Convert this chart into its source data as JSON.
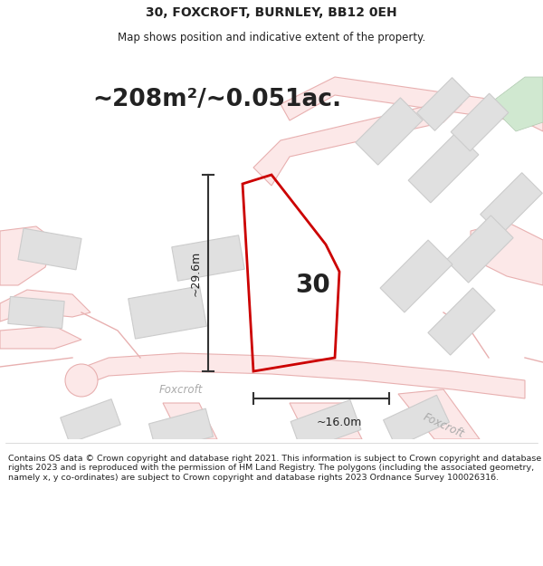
{
  "title_line1": "30, FOXCROFT, BURNLEY, BB12 0EH",
  "title_line2": "Map shows position and indicative extent of the property.",
  "area_text": "~208m²/~0.051ac.",
  "plot_number": "30",
  "dim_height": "~29.6m",
  "dim_width": "~16.0m",
  "street_label_1": "Foxcroft",
  "street_label_2": "Foxcroft",
  "footer_text": "Contains OS data © Crown copyright and database right 2021. This information is subject to Crown copyright and database rights 2023 and is reproduced with the permission of HM Land Registry. The polygons (including the associated geometry, namely x, y co-ordinates) are subject to Crown copyright and database rights 2023 Ordnance Survey 100026316.",
  "bg_color": "#ffffff",
  "map_bg": "#ffffff",
  "road_fill": "#fce8e8",
  "road_edge": "#e8b0b0",
  "road_outline_color": "#e8b0b0",
  "building_fill": "#e0e0e0",
  "building_edge": "#cccccc",
  "plot_color": "#cc0000",
  "dim_color": "#333333",
  "text_color": "#222222",
  "street_color": "#aaaaaa",
  "green_fill": "#d0e8d0",
  "green_edge": "#b0c8b0",
  "footer_sep_color": "#cccccc"
}
